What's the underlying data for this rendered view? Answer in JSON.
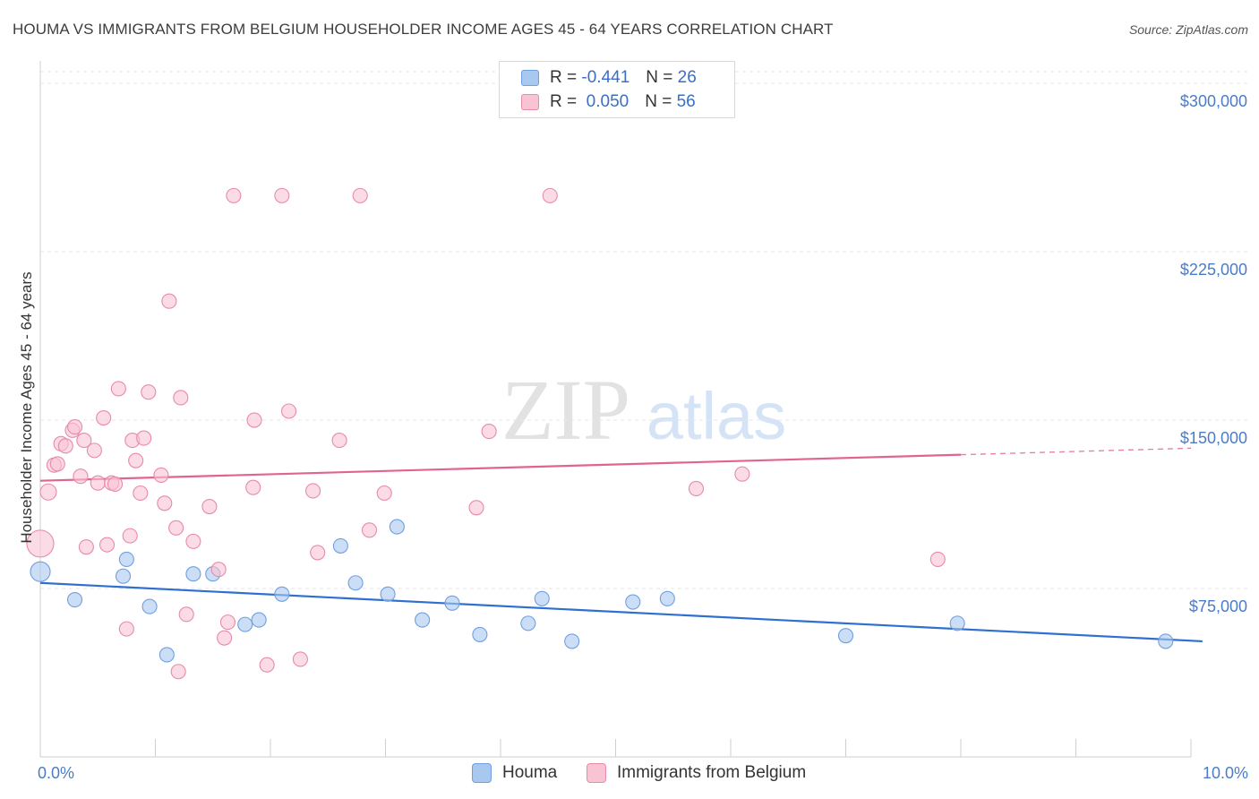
{
  "title": "HOUMA VS IMMIGRANTS FROM BELGIUM HOUSEHOLDER INCOME AGES 45 - 64 YEARS CORRELATION CHART",
  "source": "Source: ZipAtlas.com",
  "watermark": {
    "zip": "ZIP",
    "atlas": "atlas"
  },
  "legend_top": [
    {
      "r_label": "R =",
      "r_value": "-0.441",
      "n_label": "N =",
      "n_value": "26",
      "color": "#a9c8f0",
      "border": "#6f9fe0"
    },
    {
      "r_label": "R =",
      "r_value": "0.050",
      "n_label": "N =",
      "n_value": "56",
      "color": "#f8c3d3",
      "border": "#e88aa8"
    }
  ],
  "legend_bottom": [
    {
      "name": "Houma",
      "color": "#a9c8f0",
      "border": "#6f9fe0"
    },
    {
      "name": "Immigrants from Belgium",
      "color": "#f8c3d3",
      "border": "#e88aa8"
    }
  ],
  "chart_data": {
    "type": "scatter",
    "ylabel": "Householder Income Ages 45 - 64 years",
    "xlim": [
      0,
      10
    ],
    "ylim": [
      0,
      310000
    ],
    "x_tick_labels": [
      "0.0%",
      "10.0%"
    ],
    "y_ticks": [
      {
        "value": 75000,
        "label": "$75,000"
      },
      {
        "value": 150000,
        "label": "$150,000"
      },
      {
        "value": 225000,
        "label": "$225,000"
      },
      {
        "value": 300000,
        "label": "$300,000"
      }
    ],
    "grid": "horizontal dashed",
    "series": [
      {
        "name": "Houma",
        "color": "#a9c8f0",
        "stroke": "#6f9fe0",
        "line_color": "#2f6fcf",
        "trend": {
          "x0": 0,
          "y0": 77500,
          "x1": 10.1,
          "y1": 51500,
          "dashed_from": null
        },
        "points": [
          [
            0.0,
            82500,
            22
          ],
          [
            0.3,
            70000,
            16
          ],
          [
            0.75,
            88000,
            16
          ],
          [
            0.72,
            80500,
            16
          ],
          [
            0.95,
            67000,
            16
          ],
          [
            1.1,
            45500,
            16
          ],
          [
            1.33,
            81500,
            16
          ],
          [
            1.5,
            81500,
            16
          ],
          [
            1.78,
            59000,
            16
          ],
          [
            1.9,
            61000,
            16
          ],
          [
            2.1,
            72500,
            16
          ],
          [
            2.61,
            94000,
            16
          ],
          [
            2.74,
            77500,
            16
          ],
          [
            3.02,
            72500,
            16
          ],
          [
            3.1,
            102500,
            16
          ],
          [
            3.32,
            61000,
            16
          ],
          [
            3.58,
            68500,
            16
          ],
          [
            3.82,
            54500,
            16
          ],
          [
            4.24,
            59500,
            16
          ],
          [
            4.36,
            70500,
            16
          ],
          [
            4.62,
            51500,
            16
          ],
          [
            5.15,
            69000,
            16
          ],
          [
            5.45,
            70500,
            16
          ],
          [
            7.0,
            54000,
            16
          ],
          [
            7.97,
            59500,
            16
          ],
          [
            9.78,
            51500,
            16
          ]
        ]
      },
      {
        "name": "Immigrants from Belgium",
        "color": "#f8c3d3",
        "stroke": "#e88aa8",
        "line_color": "#e0648e",
        "trend": {
          "x0": 0,
          "y0": 123000,
          "x1": 10,
          "y1": 137500,
          "dashed_from": 8.0
        },
        "points": [
          [
            0.0,
            95000,
            30
          ],
          [
            0.07,
            118000,
            18
          ],
          [
            0.12,
            130000,
            16
          ],
          [
            0.15,
            130500,
            16
          ],
          [
            0.18,
            139500,
            16
          ],
          [
            0.22,
            138500,
            16
          ],
          [
            0.28,
            145500,
            16
          ],
          [
            0.3,
            147000,
            16
          ],
          [
            0.35,
            125000,
            16
          ],
          [
            0.38,
            141000,
            16
          ],
          [
            0.4,
            93500,
            16
          ],
          [
            0.47,
            136500,
            16
          ],
          [
            0.5,
            122000,
            16
          ],
          [
            0.55,
            151000,
            16
          ],
          [
            0.58,
            94500,
            16
          ],
          [
            0.62,
            122000,
            16
          ],
          [
            0.65,
            121500,
            16
          ],
          [
            0.68,
            164000,
            16
          ],
          [
            0.75,
            57000,
            16
          ],
          [
            0.78,
            98500,
            16
          ],
          [
            0.8,
            141000,
            16
          ],
          [
            0.83,
            132000,
            16
          ],
          [
            0.87,
            117500,
            16
          ],
          [
            0.9,
            142000,
            16
          ],
          [
            0.94,
            162500,
            16
          ],
          [
            1.05,
            125500,
            16
          ],
          [
            1.08,
            113000,
            16
          ],
          [
            1.12,
            203000,
            16
          ],
          [
            1.18,
            102000,
            16
          ],
          [
            1.2,
            38000,
            16
          ],
          [
            1.22,
            160000,
            16
          ],
          [
            1.27,
            63500,
            16
          ],
          [
            1.33,
            96000,
            16
          ],
          [
            1.47,
            111500,
            16
          ],
          [
            1.55,
            83500,
            16
          ],
          [
            1.6,
            53000,
            16
          ],
          [
            1.63,
            60000,
            16
          ],
          [
            1.68,
            250000,
            16
          ],
          [
            1.85,
            120000,
            16
          ],
          [
            1.86,
            150000,
            16
          ],
          [
            1.97,
            41000,
            16
          ],
          [
            2.1,
            250000,
            16
          ],
          [
            2.16,
            154000,
            16
          ],
          [
            2.26,
            43500,
            16
          ],
          [
            2.37,
            118500,
            16
          ],
          [
            2.41,
            91000,
            16
          ],
          [
            2.6,
            141000,
            16
          ],
          [
            2.78,
            250000,
            16
          ],
          [
            2.86,
            101000,
            16
          ],
          [
            2.99,
            117500,
            16
          ],
          [
            3.79,
            111000,
            16
          ],
          [
            3.9,
            145000,
            16
          ],
          [
            4.43,
            250000,
            16
          ],
          [
            5.7,
            119500,
            16
          ],
          [
            6.1,
            126000,
            16
          ],
          [
            7.8,
            88000,
            16
          ]
        ]
      }
    ]
  }
}
